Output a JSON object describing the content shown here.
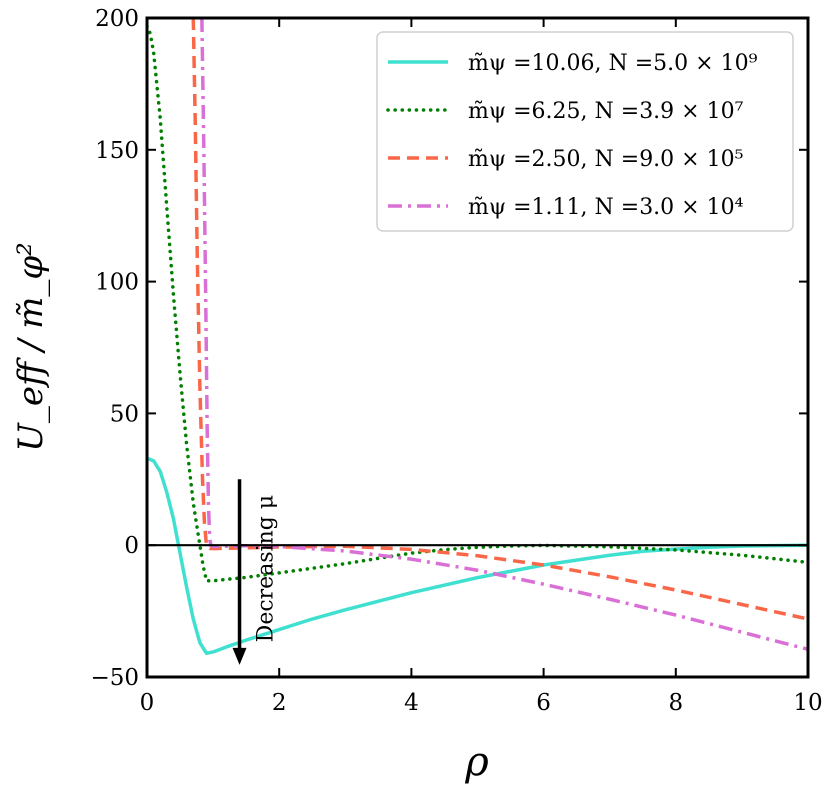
{
  "chart_data": {
    "type": "line",
    "title": "",
    "xlabel": "ρ",
    "ylabel": "U_eff / m̃_φ²",
    "xlim": [
      0,
      10
    ],
    "ylim": [
      -50,
      200
    ],
    "x_ticks": [
      0,
      2,
      4,
      6,
      8,
      10
    ],
    "x_tick_labels": [
      "0",
      "2",
      "4",
      "6",
      "8",
      "10"
    ],
    "y_ticks": [
      -50,
      0,
      50,
      100,
      150,
      200
    ],
    "y_tick_labels": [
      "−50",
      "0",
      "50",
      "100",
      "150",
      "200"
    ],
    "grid": false,
    "legend_position": "top-right",
    "colors": {
      "zero_line": "#000000",
      "arrow": "#000000"
    },
    "series": [
      {
        "name": "m̃ψ =10.06, N =5.0 × 10⁹",
        "color": "#40e0d0",
        "dash": "solid",
        "points": [
          [
            0,
            33
          ],
          [
            0.1,
            32
          ],
          [
            0.2,
            28
          ],
          [
            0.3,
            20
          ],
          [
            0.4,
            10
          ],
          [
            0.5,
            -3
          ],
          [
            0.6,
            -16
          ],
          [
            0.7,
            -28
          ],
          [
            0.8,
            -37
          ],
          [
            0.9,
            -41
          ],
          [
            1.0,
            -40.5
          ],
          [
            1.2,
            -38.6
          ],
          [
            1.5,
            -36
          ],
          [
            2,
            -32
          ],
          [
            2.5,
            -28
          ],
          [
            3,
            -24.5
          ],
          [
            4,
            -18
          ],
          [
            5,
            -12.3
          ],
          [
            6,
            -7.5
          ],
          [
            7,
            -3.8
          ],
          [
            7.5,
            -2.3
          ],
          [
            8,
            -1.5
          ],
          [
            8.5,
            -0.8
          ],
          [
            9,
            -0.3
          ],
          [
            10,
            0
          ]
        ]
      },
      {
        "name": "m̃ψ =6.25, N =3.9 × 10⁷",
        "color": "#007f00",
        "dash": "dotted",
        "points": [
          [
            0,
            197
          ],
          [
            0.05,
            194
          ],
          [
            0.1,
            187
          ],
          [
            0.2,
            162
          ],
          [
            0.3,
            128
          ],
          [
            0.4,
            95
          ],
          [
            0.5,
            65
          ],
          [
            0.6,
            38
          ],
          [
            0.7,
            16
          ],
          [
            0.8,
            0
          ],
          [
            0.85,
            -8
          ],
          [
            0.9,
            -13.5
          ],
          [
            1.0,
            -13.5
          ],
          [
            1.5,
            -12.2
          ],
          [
            2,
            -10.5
          ],
          [
            3,
            -7
          ],
          [
            4,
            -3
          ],
          [
            4.5,
            -1.7
          ],
          [
            5,
            -0.8
          ],
          [
            5.5,
            -0.3
          ],
          [
            6,
            -0.1
          ],
          [
            7,
            -0.6
          ],
          [
            8,
            -1.8
          ],
          [
            9,
            -3.8
          ],
          [
            10,
            -6.5
          ]
        ]
      },
      {
        "name": "m̃ψ =2.50, N =9.0 × 10⁵",
        "color": "#fa6748",
        "dash": "dashed",
        "points": [
          [
            0.7,
            200
          ],
          [
            0.73,
            160
          ],
          [
            0.76,
            110
          ],
          [
            0.8,
            60
          ],
          [
            0.84,
            25
          ],
          [
            0.87,
            8
          ],
          [
            0.9,
            0
          ],
          [
            0.95,
            -1.2
          ],
          [
            1,
            -1.3
          ],
          [
            2,
            -0.7
          ],
          [
            3,
            -0.4
          ],
          [
            4,
            -1.6
          ],
          [
            5,
            -4
          ],
          [
            6,
            -7.5
          ],
          [
            7,
            -12
          ],
          [
            8,
            -17
          ],
          [
            9,
            -22.5
          ],
          [
            10,
            -28
          ]
        ]
      },
      {
        "name": "m̃ψ =1.11, N =3.0 × 10⁴",
        "color": "#da70d6",
        "dash": "dashdot",
        "points": [
          [
            0.83,
            200
          ],
          [
            0.86,
            150
          ],
          [
            0.89,
            90
          ],
          [
            0.91,
            45
          ],
          [
            0.93,
            15
          ],
          [
            0.95,
            2
          ],
          [
            0.97,
            -0.3
          ],
          [
            1,
            -0.5
          ],
          [
            1.5,
            -0.2
          ],
          [
            2,
            -0.5
          ],
          [
            3,
            -2.2
          ],
          [
            4,
            -5.3
          ],
          [
            5,
            -9.5
          ],
          [
            6,
            -14.8
          ],
          [
            7,
            -20.5
          ],
          [
            8,
            -26.5
          ],
          [
            9,
            -33
          ],
          [
            10,
            -39.5
          ]
        ]
      }
    ],
    "annotations": [
      {
        "text": "Decreasing μ",
        "arrow_x": 1.4,
        "arrow_from_y": 25,
        "arrow_to_y": -45
      }
    ]
  }
}
